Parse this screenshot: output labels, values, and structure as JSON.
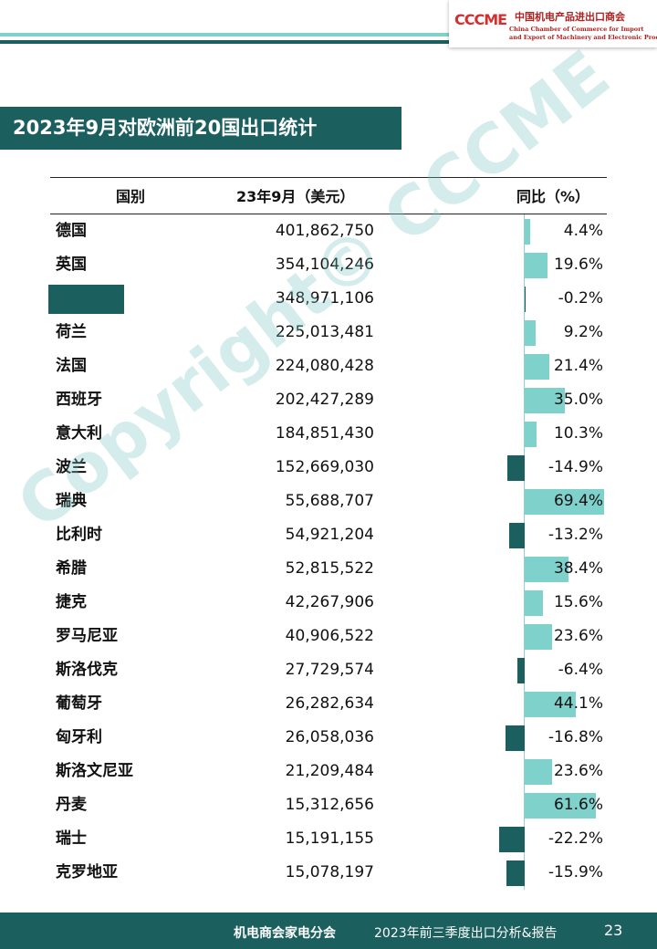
{
  "logo": {
    "mark": "CCCME",
    "name_cn": "中国机电产品进出口商会",
    "name_en_1": "China Chamber of Commerce for Import",
    "name_en_2": "and Export of Machinery and Electronic Products"
  },
  "title": "2023年9月对欧洲前20国出口统计",
  "table": {
    "headers": [
      "国别",
      "23年9月（美元）",
      "同比（%）"
    ],
    "rows": [
      {
        "name": "德国",
        "value": "401,862,750",
        "yoy": 4.4,
        "yoy_label": "4.4%"
      },
      {
        "name": "英国",
        "value": "354,104,246",
        "yoy": 19.6,
        "yoy_label": "19.6%"
      },
      {
        "name": null,
        "value": "348,971,106",
        "yoy": -0.2,
        "yoy_label": "-0.2%"
      },
      {
        "name": "荷兰",
        "value": "225,013,481",
        "yoy": 9.2,
        "yoy_label": "9.2%"
      },
      {
        "name": "法国",
        "value": "224,080,428",
        "yoy": 21.4,
        "yoy_label": "21.4%"
      },
      {
        "name": "西班牙",
        "value": "202,427,289",
        "yoy": 35.0,
        "yoy_label": "35.0%"
      },
      {
        "name": "意大利",
        "value": "184,851,430",
        "yoy": 10.3,
        "yoy_label": "10.3%"
      },
      {
        "name": "波兰",
        "value": "152,669,030",
        "yoy": -14.9,
        "yoy_label": "-14.9%"
      },
      {
        "name": "瑞典",
        "value": "55,688,707",
        "yoy": 69.4,
        "yoy_label": "69.4%"
      },
      {
        "name": "比利时",
        "value": "54,921,204",
        "yoy": -13.2,
        "yoy_label": "-13.2%"
      },
      {
        "name": "希腊",
        "value": "52,815,522",
        "yoy": 38.4,
        "yoy_label": "38.4%"
      },
      {
        "name": "捷克",
        "value": "42,267,906",
        "yoy": 15.6,
        "yoy_label": "15.6%"
      },
      {
        "name": "罗马尼亚",
        "value": "40,906,522",
        "yoy": 23.6,
        "yoy_label": "23.6%"
      },
      {
        "name": "斯洛伐克",
        "value": "27,729,574",
        "yoy": -6.4,
        "yoy_label": "-6.4%"
      },
      {
        "name": "葡萄牙",
        "value": "26,282,634",
        "yoy": 44.1,
        "yoy_label": "44.1%"
      },
      {
        "name": "匈牙利",
        "value": "26,058,036",
        "yoy": -16.8,
        "yoy_label": "-16.8%"
      },
      {
        "name": "斯洛文尼亚",
        "value": "21,209,484",
        "yoy": 23.6,
        "yoy_label": "23.6%"
      },
      {
        "name": "丹麦",
        "value": "15,312,656",
        "yoy": 61.6,
        "yoy_label": "61.6%"
      },
      {
        "name": "瑞士",
        "value": "15,191,155",
        "yoy": -22.2,
        "yoy_label": "-22.2%"
      },
      {
        "name": "克罗地亚",
        "value": "15,078,197",
        "yoy": -15.9,
        "yoy_label": "-15.9%"
      }
    ]
  },
  "watermark": "Copyright© CCCME",
  "footer": {
    "org": "机电商会家电分会",
    "report": "2023年前三季度出口分析&报告",
    "page": "23"
  }
}
